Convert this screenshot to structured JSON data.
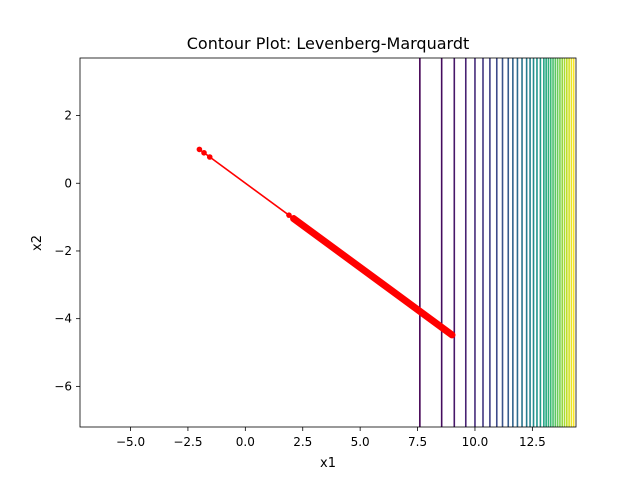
{
  "chart_data": {
    "type": "contour",
    "title": "Contour Plot: Levenberg-Marquardt",
    "xlabel": "x1",
    "ylabel": "x2",
    "xlim": [
      -7.2,
      14.4
    ],
    "ylim": [
      -7.2,
      3.7
    ],
    "x_ticks": [
      -5.0,
      -2.5,
      0.0,
      2.5,
      5.0,
      7.5,
      10.0,
      12.5
    ],
    "x_tick_labels": [
      "−5.0",
      "−2.5",
      "0.0",
      "2.5",
      "5.0",
      "7.5",
      "10.0",
      "12.5"
    ],
    "y_ticks": [
      2,
      0,
      -2,
      -4,
      -6
    ],
    "y_tick_labels": [
      "2",
      "0",
      "−2",
      "−4",
      "−6"
    ],
    "grid": false,
    "legend": "none",
    "colormap": "viridis",
    "contour_levels_x1": [
      7.6,
      8.55,
      9.1,
      9.6,
      10.0,
      10.35,
      10.65,
      10.95,
      11.2,
      11.45,
      11.65,
      11.85,
      12.05,
      12.25,
      12.4,
      12.55,
      12.7,
      12.85,
      13.0,
      13.1,
      13.2,
      13.3,
      13.4,
      13.5,
      13.6,
      13.7,
      13.8,
      13.9,
      14.0,
      14.1,
      14.2,
      14.3
    ],
    "series": [
      {
        "color": "#ff0000",
        "marker": "o",
        "start": [
          -2.0,
          1.0
        ],
        "end": [
          9.0,
          -4.48
        ],
        "dense_segment": [
          2.1,
          9.0
        ],
        "x": [
          -2.0,
          -1.8,
          -1.55,
          1.9,
          2.1,
          2.3
        ]
      }
    ]
  }
}
